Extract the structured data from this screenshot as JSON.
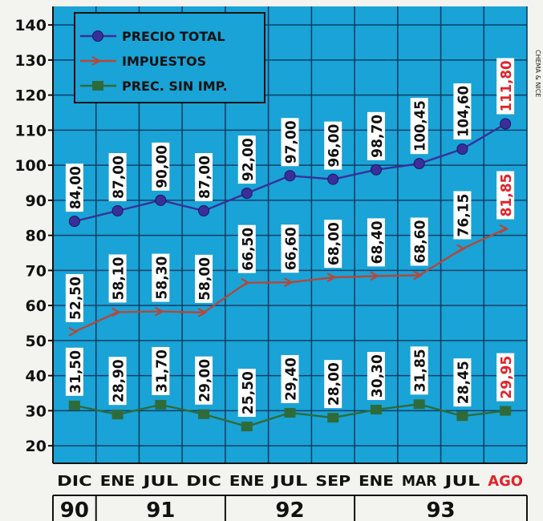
{
  "chart_data": {
    "type": "line",
    "categories": [
      "DIC",
      "ENE",
      "JUL",
      "DIC",
      "ENE",
      "JUL",
      "SEP",
      "ENE",
      "MAR",
      "JUL",
      "AGO"
    ],
    "years": [
      {
        "label": "90",
        "from": 0,
        "to": 0
      },
      {
        "label": "91",
        "from": 1,
        "to": 3
      },
      {
        "label": "92",
        "from": 4,
        "to": 6
      },
      {
        "label": "93",
        "from": 7,
        "to": 10
      }
    ],
    "series": [
      {
        "name": "PRECIO TOTAL",
        "marker": "circle",
        "color": "#3a2f9a",
        "values": [
          84.0,
          87.0,
          90.0,
          87.0,
          92.0,
          97.0,
          96.0,
          98.7,
          100.45,
          104.6,
          111.8
        ],
        "labels": [
          "84,00",
          "87,00",
          "90,00",
          "87,00",
          "92,00",
          "97,00",
          "96,00",
          "98,70",
          "100,45",
          "104,60",
          "111,80"
        ]
      },
      {
        "name": "IMPUESTOS",
        "marker": "arrow",
        "color": "#b5473a",
        "values": [
          52.5,
          58.1,
          58.3,
          58.0,
          66.5,
          66.6,
          68.0,
          68.4,
          68.6,
          76.15,
          81.85
        ],
        "labels": [
          "52,50",
          "58,10",
          "58,30",
          "58,00",
          "66,50",
          "66,60",
          "68,00",
          "68,40",
          "68,60",
          "76,15",
          "81,85"
        ]
      },
      {
        "name": "PREC. SIN IMP.",
        "marker": "square",
        "color": "#2f6b3a",
        "values": [
          31.5,
          28.9,
          31.7,
          29.0,
          25.5,
          29.4,
          28.0,
          30.3,
          31.85,
          28.45,
          29.95
        ],
        "labels": [
          "31,50",
          "28,90",
          "31,70",
          "29,00",
          "25,50",
          "29,40",
          "28,00",
          "30,30",
          "31,85",
          "28,45",
          "29,95"
        ]
      }
    ],
    "yticks": [
      "20",
      "30",
      "40",
      "50",
      "60",
      "70",
      "80",
      "90",
      "100",
      "110",
      "120",
      "130",
      "140"
    ],
    "ylim": [
      15,
      143
    ],
    "grid": true,
    "legend_position": "top-left",
    "highlight_category_index": 10,
    "credit": "CHEMA & NICE"
  },
  "colors": {
    "panel": "#1aa3d6",
    "grid": "#0b3f66",
    "axis_text": "#111111",
    "label_box": "#ffffff",
    "label_text": "#111111",
    "highlight_text": "#e0232a"
  }
}
